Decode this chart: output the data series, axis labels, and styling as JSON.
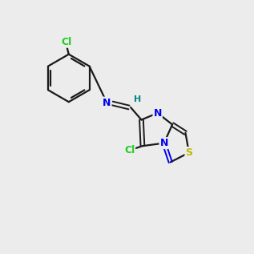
{
  "bg": "#ececec",
  "black": "#1a1a1a",
  "blue": "#0000ee",
  "green_cl": "#22cc22",
  "sulfur": "#bbbb00",
  "teal": "#008888",
  "lw": 1.6,
  "lw_db": 1.4,
  "fs": 9,
  "fs_small": 8
}
